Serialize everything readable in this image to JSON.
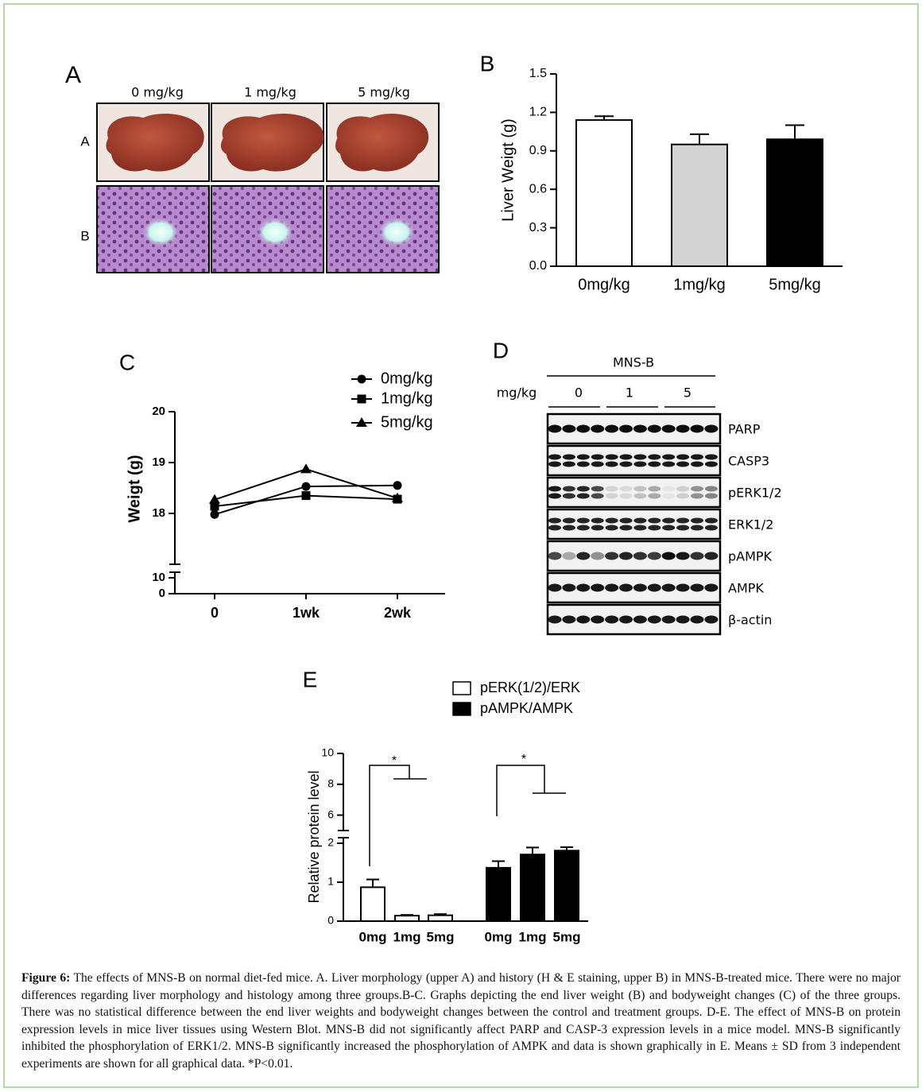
{
  "panel_labels": [
    "A",
    "B",
    "C",
    "D",
    "E"
  ],
  "panel_a": {
    "columns": [
      "0 mg/kg",
      "1 mg/kg",
      "5 mg/kg"
    ],
    "rows": [
      "A",
      "B"
    ]
  },
  "panel_d": {
    "treatment": "MNS-B",
    "unit_label": "mg/kg",
    "doses": [
      "0",
      "1",
      "5"
    ],
    "proteins": [
      "PARP",
      "CASP3",
      "pERK1/2",
      "ERK1/2",
      "pAMPK",
      "AMPK",
      "β-actin"
    ]
  },
  "chart_data": [
    {
      "type": "bar",
      "y_label": "Liver Weigt (g)",
      "categories": [
        "0mg/kg",
        "1mg/kg",
        "5mg/kg"
      ],
      "values": [
        1.14,
        0.95,
        0.99
      ],
      "errors": [
        0.03,
        0.08,
        0.11
      ],
      "colors": [
        "#ffffff",
        "#d3d3d3",
        "#000000"
      ],
      "ylim": [
        0,
        1.5
      ],
      "yticks": [
        {
          "value": 0,
          "label": "0.0"
        },
        0.3,
        0.6,
        0.9,
        1.2,
        1.5
      ]
    },
    {
      "type": "line",
      "y_label": "Weigt (g)",
      "categories": [
        "0",
        "1wk",
        "2wk"
      ],
      "series": [
        {
          "name": "0mg/kg",
          "color": "#000000",
          "marker": "circle",
          "values": [
            17.98,
            18.53,
            18.55
          ]
        },
        {
          "name": "1mg/kg",
          "color": "#000000",
          "marker": "square",
          "values": [
            18.14,
            18.35,
            18.28
          ]
        },
        {
          "name": "5mg/kg",
          "color": "#000000",
          "marker": "triangle",
          "values": [
            18.27,
            18.87,
            18.3
          ]
        }
      ],
      "ylim": [
        0,
        20
      ],
      "y_break": [
        10,
        17
      ],
      "yticks": [
        0,
        10,
        18,
        19,
        20
      ]
    },
    {
      "type": "grouped_bar",
      "y_label": "Relative protein level",
      "categories": [
        "0mg",
        "1mg",
        "5mg"
      ],
      "series": [
        {
          "name": "pERK(1/2)/ERK",
          "color": "#ffffff",
          "values": [
            0.87,
            0.14,
            0.15
          ],
          "errors": [
            0.2,
            0.02,
            0.03
          ]
        },
        {
          "name": "pAMPK/AMPK",
          "color": "#000000",
          "values": [
            1.37,
            1.71,
            1.81
          ],
          "errors": [
            0.17,
            0.18,
            0.09
          ]
        }
      ],
      "annotations": [
        "*",
        "*"
      ],
      "ylim": [
        0,
        10
      ],
      "y_break": [
        2,
        5
      ],
      "yticks": [
        0,
        1,
        2,
        6,
        8,
        10
      ]
    }
  ],
  "caption": {
    "label": "Figure 6:",
    "text": "The effects of MNS-B on normal diet-fed mice. A. Liver morphology (upper A) and history (H & E staining, upper B) in MNS-B-treated mice. There were no major differences regarding liver morphology and histology among three groups.B-C. Graphs depicting the end liver weight (B) and bodyweight changes (C) of the three groups. There was no statistical difference between the end liver weights and bodyweight changes between the control and treatment groups. D-E. The effect of MNS-B on protein expression levels in mice liver tissues using Western Blot. MNS-B did not significantly affect PARP and CASP-3 expression levels in a mice model. MNS-B significantly inhibited the phosphorylation of ERK1/2. MNS-B significantly increased the phosphorylation of AMPK and data is shown graphically in E. Means ± SD from 3 independent experiments are shown for all graphical data. *P<0.01."
  }
}
